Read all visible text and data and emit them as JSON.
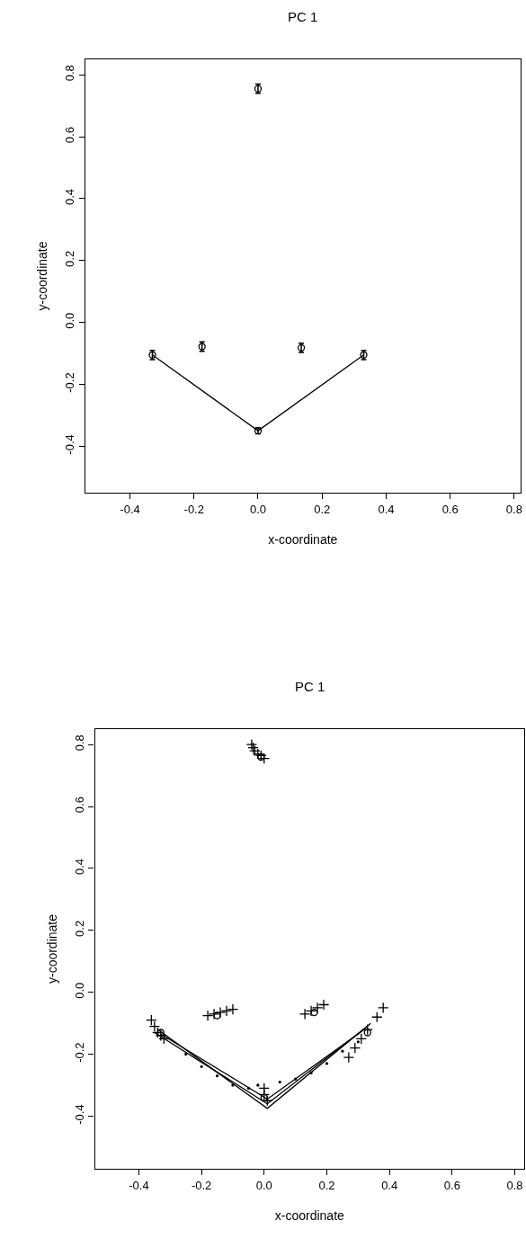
{
  "chart_data": [
    {
      "type": "scatter",
      "title": "PC 1",
      "xlabel": "x-coordinate",
      "ylabel": "y-coordinate",
      "xlim": [
        -0.54,
        0.82
      ],
      "ylim": [
        -0.55,
        0.85
      ],
      "xticks": [
        -0.4,
        -0.2,
        {
          "value": 0,
          "label": "0.0"
        },
        0.2,
        0.4,
        0.6,
        0.8
      ],
      "yticks": [
        -0.4,
        -0.2,
        {
          "value": 0,
          "label": "0.0"
        },
        0.2,
        0.4,
        0.6,
        0.8
      ],
      "series": [
        {
          "type": "line",
          "color": "#000000",
          "marker": "none",
          "line_style": "solid",
          "x": [
            -0.33,
            0.0,
            0.33
          ],
          "values": [
            -0.105,
            -0.35,
            -0.105
          ]
        },
        {
          "color": "#000000",
          "marker": "circle",
          "x": [
            0.0,
            -0.33,
            -0.175,
            0.135,
            0.33,
            0.0
          ],
          "values": [
            0.755,
            -0.105,
            -0.078,
            -0.082,
            -0.105,
            -0.35
          ],
          "errors": [
            0.015,
            0.015,
            0.015,
            0.015,
            0.015,
            0.01
          ]
        }
      ]
    },
    {
      "type": "scatter",
      "title": "PC 1",
      "xlabel": "x-coordinate",
      "ylabel": "y-coordinate",
      "xlim": [
        -0.54,
        0.83
      ],
      "ylim": [
        -0.57,
        0.85
      ],
      "xticks": [
        -0.4,
        -0.2,
        {
          "value": 0,
          "label": "0.0"
        },
        0.2,
        0.4,
        0.6,
        0.8
      ],
      "yticks": [
        -0.4,
        -0.2,
        {
          "value": 0,
          "label": "0.0"
        },
        0.2,
        0.4,
        0.6,
        0.8
      ],
      "series": [
        {
          "type": "line",
          "color": "#000000",
          "marker": "none",
          "line_style": "solid",
          "x": [
            -0.35,
            0.01,
            0.33
          ],
          "values": [
            -0.13,
            -0.36,
            -0.11
          ]
        },
        {
          "type": "line",
          "color": "#000000",
          "marker": "none",
          "line_style": "solid",
          "x": [
            -0.34,
            0.01,
            0.34
          ],
          "values": [
            -0.12,
            -0.375,
            -0.1
          ]
        },
        {
          "type": "line",
          "color": "#000000",
          "marker": "none",
          "line_style": "solid",
          "x": [
            -0.33,
            0.01,
            0.32
          ],
          "values": [
            -0.135,
            -0.345,
            -0.12
          ]
        },
        {
          "color": "#000000",
          "marker": "cross",
          "x": [
            -0.04,
            -0.035,
            -0.03,
            -0.02,
            -0.01,
            0.0,
            -0.36,
            -0.35,
            -0.34,
            -0.33,
            -0.32,
            -0.18,
            -0.16,
            -0.14,
            -0.12,
            -0.1,
            0.13,
            0.15,
            0.17,
            0.19,
            0.27,
            0.29,
            0.31,
            0.33,
            0.36,
            0.38,
            0.0,
            0.0,
            0.01
          ],
          "values": [
            0.8,
            0.79,
            0.78,
            0.77,
            0.765,
            0.755,
            -0.09,
            -0.11,
            -0.13,
            -0.14,
            -0.15,
            -0.075,
            -0.07,
            -0.065,
            -0.06,
            -0.055,
            -0.07,
            -0.06,
            -0.05,
            -0.04,
            -0.21,
            -0.18,
            -0.15,
            -0.12,
            -0.08,
            -0.05,
            -0.31,
            -0.33,
            -0.35
          ]
        },
        {
          "color": "#000000",
          "marker": "dot",
          "x": [
            -0.25,
            -0.2,
            -0.15,
            -0.1,
            -0.05,
            -0.02,
            0.05,
            0.1,
            0.15,
            0.2,
            0.25,
            0.3
          ],
          "values": [
            -0.2,
            -0.24,
            -0.27,
            -0.3,
            -0.31,
            -0.3,
            -0.29,
            -0.28,
            -0.26,
            -0.23,
            -0.19,
            -0.16
          ]
        },
        {
          "color": "#000000",
          "marker": "circle",
          "x": [
            -0.01,
            -0.33,
            -0.15,
            0.16,
            0.33,
            0.0
          ],
          "values": [
            0.76,
            -0.13,
            -0.075,
            -0.065,
            -0.13,
            -0.34
          ]
        }
      ]
    }
  ]
}
